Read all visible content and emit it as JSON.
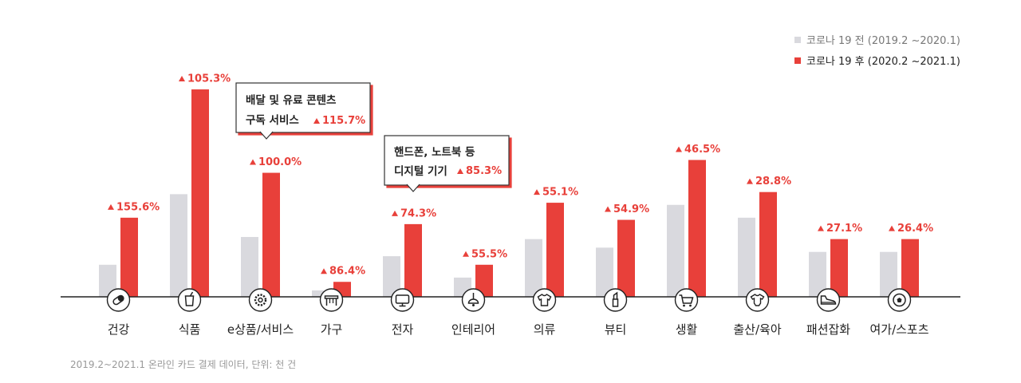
{
  "chart_data": {
    "type": "bar",
    "title": "",
    "xlabel": "",
    "ylabel": "",
    "ylim": [
      0,
      100
    ],
    "grid": false,
    "legend_placement": "top-right",
    "categories": [
      "건강",
      "식품",
      "e상품/서비스",
      "가구",
      "전자",
      "인테리어",
      "의류",
      "뷰티",
      "생활",
      "출산/육아",
      "패션잡화",
      "여가/스포츠"
    ],
    "category_icons": [
      "pill-icon",
      "drink-cup-icon",
      "gear-icon",
      "table-icon",
      "monitor-icon",
      "lamp-icon",
      "tshirt-icon",
      "lipstick-icon",
      "cart-icon",
      "baby-onesie-icon",
      "sneaker-icon",
      "soccer-ball-icon"
    ],
    "series": [
      {
        "name": "코로나 19 전  (2019.2 ~2020.1)",
        "color": "#d9d9de",
        "values": [
          15,
          48,
          28,
          3,
          19,
          9,
          27,
          23,
          43,
          37,
          21,
          21
        ]
      },
      {
        "name": "코로나 19 후  (2020.2 ~2021.1)",
        "color": "#e8403a",
        "values": [
          37,
          97,
          58,
          7,
          34,
          15,
          44,
          36,
          64,
          49,
          27,
          27
        ]
      }
    ],
    "data_labels": [
      "155.6%",
      "105.3%",
      "100.0%",
      "86.4%",
      "74.3%",
      "55.5%",
      "55.1%",
      "54.9%",
      "46.5%",
      "28.8%",
      "27.1%",
      "26.4%"
    ],
    "callouts": [
      {
        "category_index": 2,
        "lines": [
          "배달 및 유료 콘텐츠",
          "구독 서비스"
        ],
        "value": "115.7%"
      },
      {
        "category_index": 4,
        "lines": [
          "핸드폰, 노트북 등",
          "디지털 기기"
        ],
        "value": "85.3%"
      }
    ],
    "source_note": "2019.2~2021.1 온라인 카드 결제 데이터, 단위: 천 건"
  }
}
